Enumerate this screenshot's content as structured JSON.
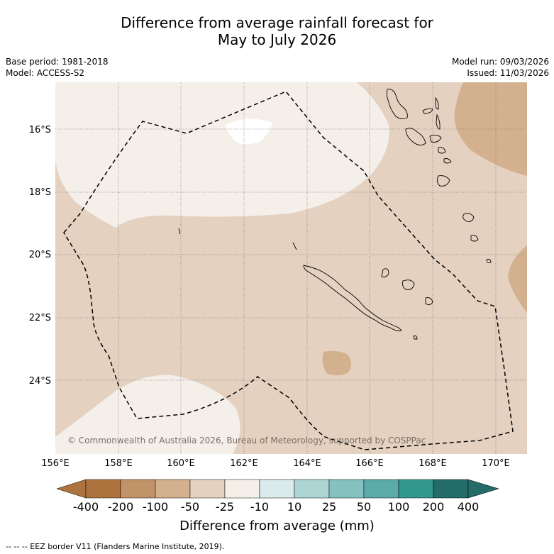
{
  "header": {
    "title_line1": "Difference from average rainfall forecast for",
    "title_line2": "May to July 2026"
  },
  "meta": {
    "base_period": "Base period: 1981-2018",
    "model": "Model: ACCESS-S2",
    "model_run": "Model run: 09/03/2026",
    "issued": "Issued: 11/03/2026"
  },
  "map": {
    "lat_labels": [
      "16°S",
      "18°S",
      "20°S",
      "22°S",
      "24°S"
    ],
    "lon_labels": [
      "156°E",
      "158°E",
      "160°E",
      "162°E",
      "164°E",
      "166°E",
      "168°E",
      "170°E"
    ],
    "copyright": "© Commonwealth of Australia 2026, Bureau of Meteorology, supported by COSPPac"
  },
  "colorbar": {
    "title": "Difference from average (mm)",
    "labels": [
      "-400",
      "-200",
      "-100",
      "-50",
      "-25",
      "-10",
      "10",
      "25",
      "50",
      "100",
      "200",
      "400"
    ],
    "colors": [
      "#ad743f",
      "#c29268",
      "#d3b08e",
      "#e4d1bf",
      "#f5efea",
      "#ffffff",
      "#d9ebea",
      "#acd5d4",
      "#84c1bf",
      "#5aabaa",
      "#32978f",
      "#236c68"
    ]
  },
  "footnote": "--  --  -- EEZ border V11 (Flanders Marine Institute, 2019)."
}
